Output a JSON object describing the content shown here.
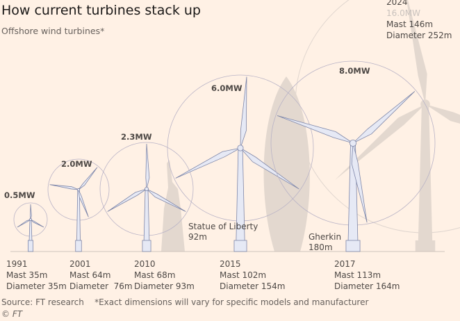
{
  "title": "How current turbines stack up",
  "subtitle": "Offshore wind turbines*",
  "turbines": [
    {
      "year": "1991",
      "power": "0.5MW",
      "mast": "Mast 35m",
      "diameter": "Diameter 35m"
    },
    {
      "year": "2001",
      "power": "2.0MW",
      "mast": "Mast 64m",
      "diameter": "Diameter  76m"
    },
    {
      "year": "2010",
      "power": "2.3MW",
      "mast": "Mast 68m",
      "diameter": "Diameter 93m"
    },
    {
      "year": "2015",
      "power": "6.0MW",
      "mast": "Mast 102m",
      "diameter": "Diameter 154m"
    },
    {
      "year": "2017",
      "power": "8.0MW",
      "mast": "Mast 113m",
      "diameter": "Diameter 164m"
    },
    {
      "year": "2024",
      "power": "16.0MW",
      "mast": "Mast 146m",
      "diameter": "Diameter 252m"
    }
  ],
  "landmarks": [
    {
      "name": "Statue of Liberty",
      "height": "92m"
    },
    {
      "name": "Gherkin",
      "height": "180m"
    }
  ],
  "source": "Source: FT research    *Exact dimensions will vary for specific models and manufacturer",
  "copyright": "© FT",
  "colors": {
    "background": "#fff1e5",
    "turbine_fill": "#e6e9f5",
    "turbine_stroke": "#7e86a8",
    "circle": "#b9b3c6",
    "ghost": "#e3d8cf"
  }
}
